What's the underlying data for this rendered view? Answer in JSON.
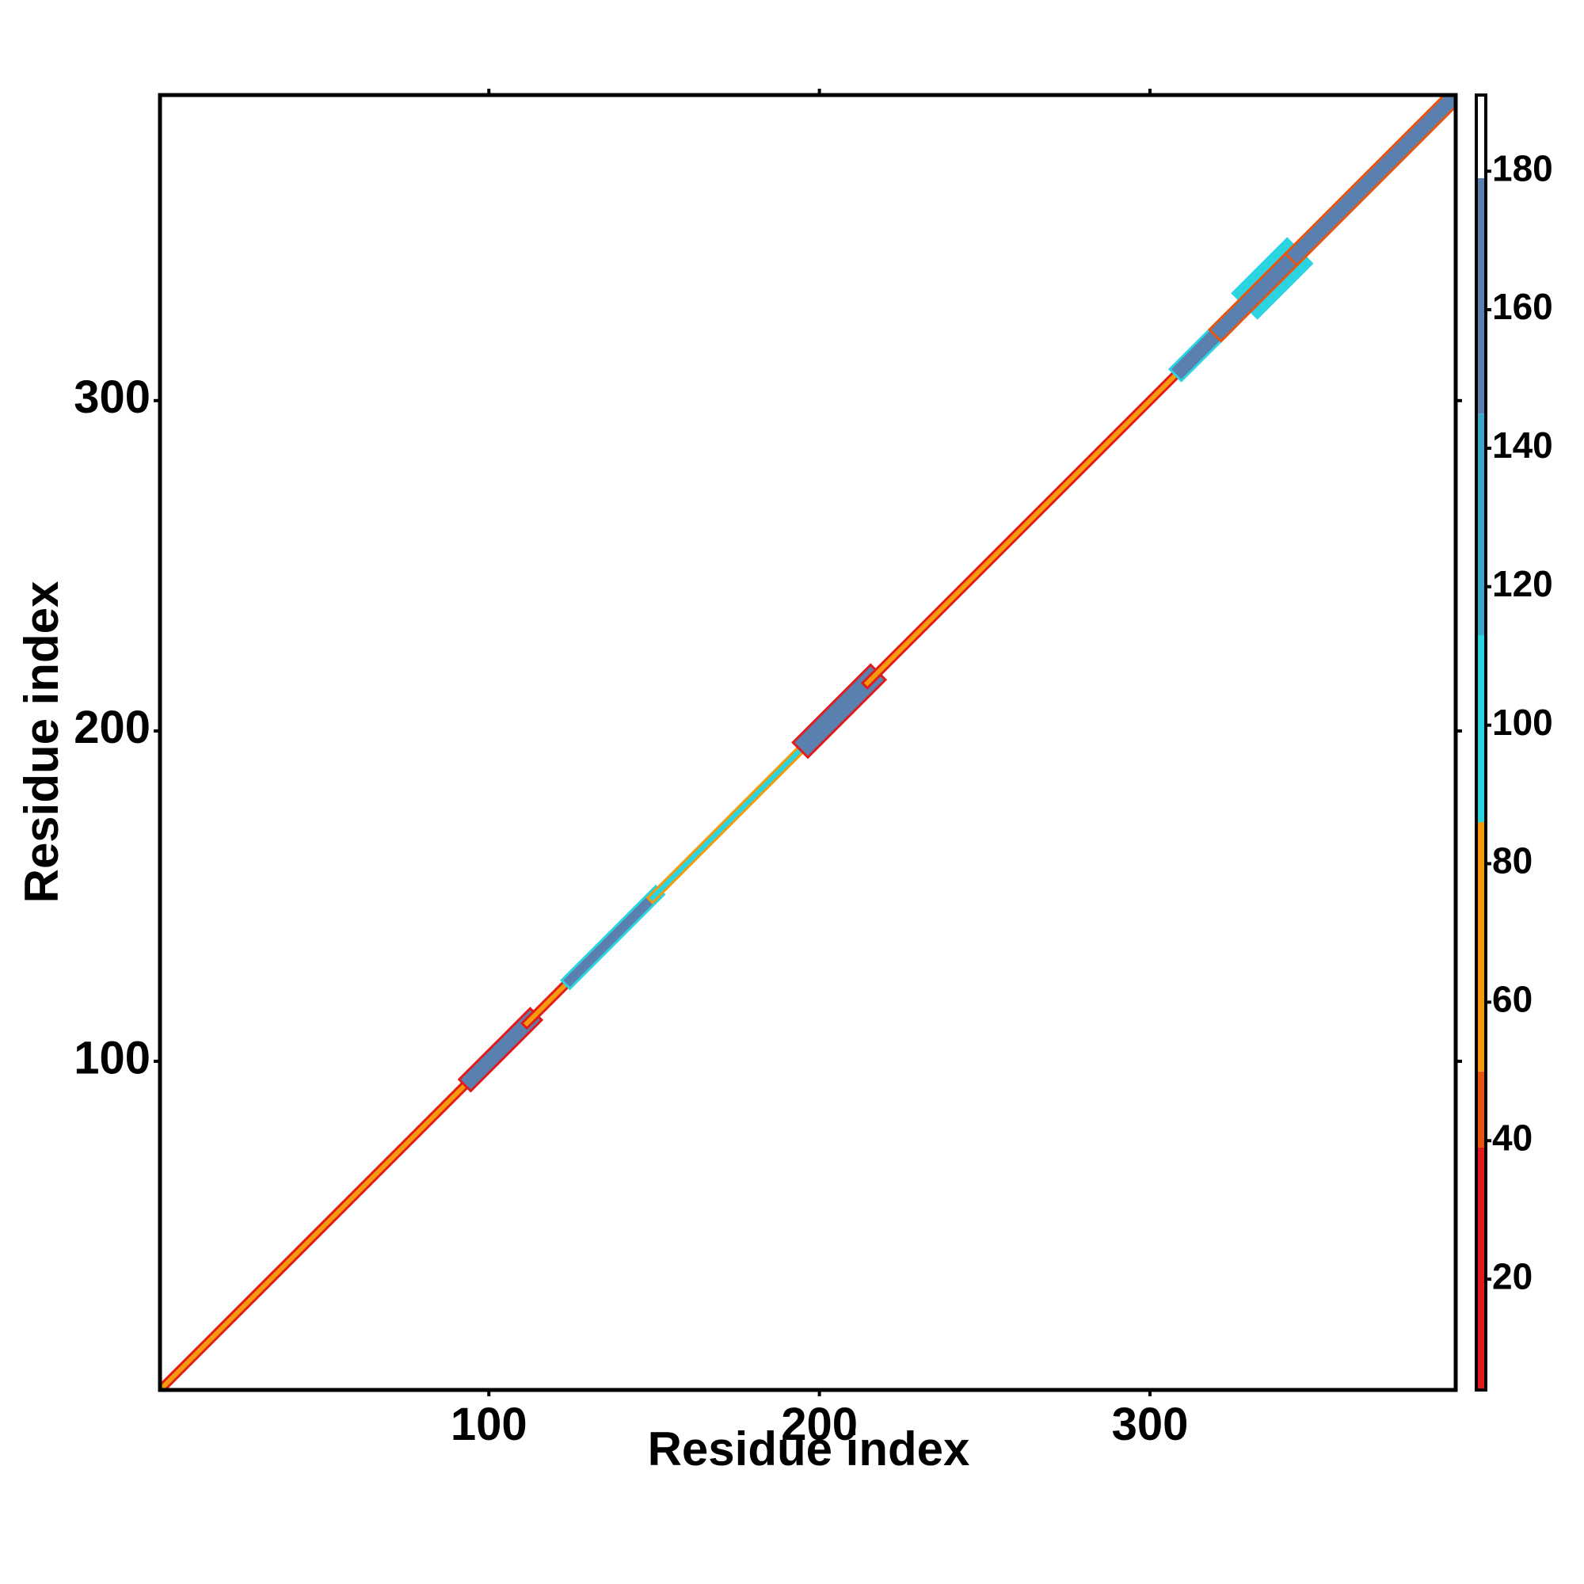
{
  "chart_data": {
    "type": "contact_map",
    "xlabel": "Residue index",
    "ylabel": "Residue index",
    "xlim": [
      0.5,
      392.5
    ],
    "ylim": [
      0.5,
      392.5
    ],
    "xticks": [
      100,
      200,
      300
    ],
    "yticks": [
      100,
      200,
      300
    ],
    "segments": [
      {
        "start": 1,
        "end": 95,
        "width": 2,
        "value": 20
      },
      {
        "start": 1,
        "end": 95,
        "width": 1,
        "value": 70
      },
      {
        "start": 95,
        "end": 112,
        "width": 4,
        "value": 20
      },
      {
        "start": 95,
        "end": 112,
        "width": 3,
        "value": 170
      },
      {
        "start": 112,
        "end": 125,
        "width": 2,
        "value": 20
      },
      {
        "start": 112,
        "end": 125,
        "width": 1,
        "value": 70
      },
      {
        "start": 125,
        "end": 150,
        "width": 3,
        "value": 110
      },
      {
        "start": 125,
        "end": 150,
        "width": 2,
        "value": 170
      },
      {
        "start": 150,
        "end": 197,
        "width": 2,
        "value": 70
      },
      {
        "start": 150,
        "end": 197,
        "width": 1,
        "value": 110
      },
      {
        "start": 197,
        "end": 215,
        "width": 5,
        "value": 20
      },
      {
        "start": 197,
        "end": 215,
        "width": 4,
        "value": 170
      },
      {
        "start": 215,
        "end": 310,
        "width": 2,
        "value": 20
      },
      {
        "start": 215,
        "end": 310,
        "width": 1,
        "value": 70
      },
      {
        "start": 310,
        "end": 322,
        "width": 4,
        "value": 110
      },
      {
        "start": 310,
        "end": 322,
        "width": 3,
        "value": 170
      },
      {
        "start": 333,
        "end": 341,
        "width": 8,
        "value": 110
      },
      {
        "start": 322,
        "end": 345,
        "width": 4,
        "value": 50
      },
      {
        "start": 322,
        "end": 345,
        "width": 3,
        "value": 170
      },
      {
        "start": 345,
        "end": 392,
        "width": 4,
        "value": 50
      },
      {
        "start": 345,
        "end": 392,
        "width": 3,
        "value": 170
      }
    ],
    "colorbar": {
      "lim": [
        4,
        191
      ],
      "ticks": [
        20,
        40,
        60,
        80,
        100,
        120,
        140,
        160,
        180
      ],
      "bands": [
        {
          "from": 4,
          "to": 39,
          "color": "#e31a1c"
        },
        {
          "from": 39,
          "to": 50,
          "color": "#e8550f"
        },
        {
          "from": 50,
          "to": 86,
          "color": "#f59a0c"
        },
        {
          "from": 86,
          "to": 113,
          "color": "#2ad4e0"
        },
        {
          "from": 113,
          "to": 145,
          "color": "#3aa8c8"
        },
        {
          "from": 145,
          "to": 179,
          "color": "#5a80b0"
        },
        {
          "from": 179,
          "to": 191,
          "color": "#ffffff"
        }
      ]
    }
  }
}
